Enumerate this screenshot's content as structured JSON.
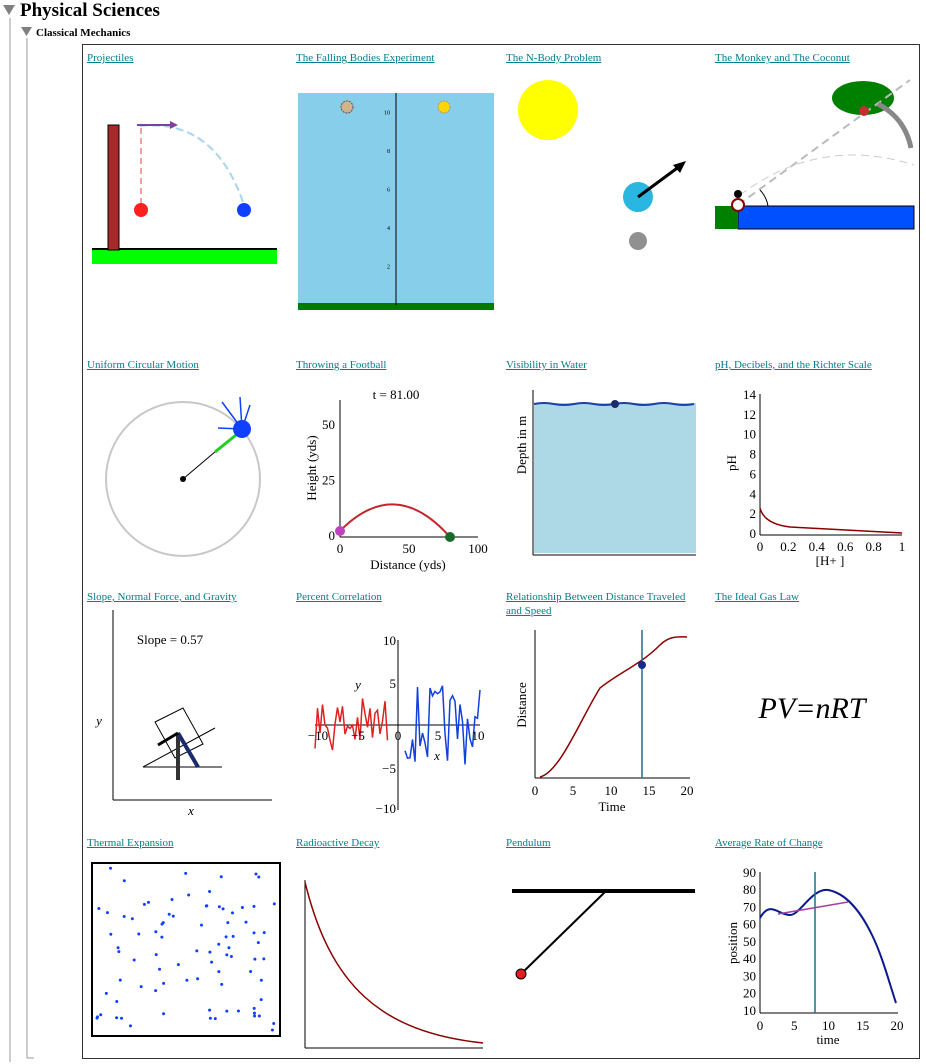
{
  "header": {
    "title": "Physical Sciences"
  },
  "section": {
    "title": "Classical Mechanics"
  },
  "items": [
    {
      "title": "Projectiles"
    },
    {
      "title": "The Falling Bodies Experiment",
      "yticks": [
        "10",
        "8",
        "6",
        "4",
        "2"
      ]
    },
    {
      "title": "The N-Body Problem"
    },
    {
      "title": "The Monkey and The Coconut"
    },
    {
      "title": "Uniform Circular Motion"
    },
    {
      "title": "Throwing a Football",
      "caption": "t = 81.00",
      "ylabel": "Height (yds)",
      "xlabel": "Distance (yds)",
      "yticks": [
        "50",
        "25",
        "0"
      ],
      "xticks": [
        "0",
        "50",
        "100"
      ]
    },
    {
      "title": "Visibility in Water",
      "ylabel": "Depth in m"
    },
    {
      "title": "pH, Decibels, and the Richter Scale",
      "ylabel": "pH",
      "xlabel": "[H+ ]",
      "yticks": [
        "14",
        "12",
        "10",
        "8",
        "6",
        "4",
        "2",
        "0"
      ],
      "xticks": [
        "0",
        "0.2",
        "0.4",
        "0.6",
        "0.8",
        "1"
      ]
    },
    {
      "title": "Slope, Normal Force, and Gravity",
      "caption": "Slope = 0.57",
      "ylabel": "y",
      "xlabel": "x"
    },
    {
      "title": "Percent Correlation",
      "ylabel": "y",
      "xlabel": "x",
      "yticks": [
        "10",
        "5",
        "−5",
        "−10"
      ],
      "xticks": [
        "−10",
        "−5",
        "0",
        "5",
        "10"
      ]
    },
    {
      "title": "Relationship Between Distance Traveled and Speed",
      "ylabel": "Distance",
      "xlabel": "Time",
      "xticks": [
        "0",
        "5",
        "10",
        "15",
        "20"
      ]
    },
    {
      "title": "The Ideal Gas Law",
      "caption": "PV=nRT"
    },
    {
      "title": "Thermal Expansion"
    },
    {
      "title": "Radioactive Decay"
    },
    {
      "title": "Pendulum"
    },
    {
      "title": "Average Rate of Change",
      "ylabel": "position",
      "xlabel": "time",
      "yticks": [
        "90",
        "80",
        "70",
        "60",
        "50",
        "40",
        "30",
        "20",
        "10"
      ],
      "xticks": [
        "0",
        "5",
        "10",
        "15",
        "20"
      ]
    }
  ]
}
